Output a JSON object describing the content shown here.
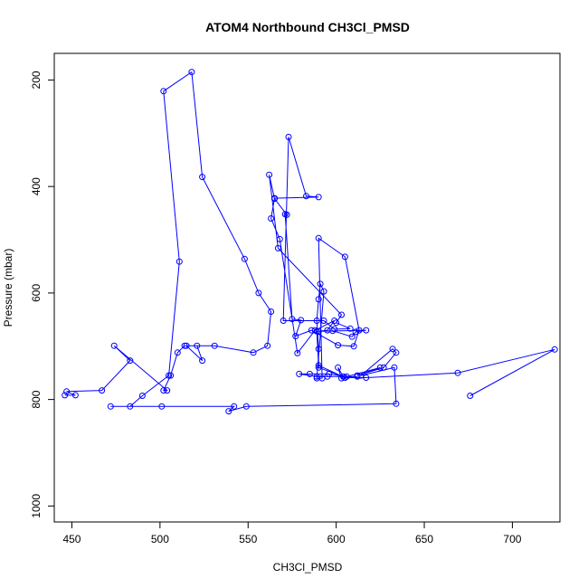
{
  "chart_data": {
    "type": "line",
    "title": "ATOM4 Northbound CH3Cl_PMSD",
    "xlabel": "CH3Cl_PMSD",
    "ylabel": "Pressure (mbar)",
    "xlim": [
      440,
      727
    ],
    "ylim": [
      1030,
      150
    ],
    "y_reversed": true,
    "x_ticks": [
      450,
      500,
      550,
      600,
      650,
      700
    ],
    "y_ticks": [
      200,
      400,
      600,
      800,
      1000
    ],
    "grid": false,
    "legend": "none",
    "series": [
      {
        "color": "#0000ff",
        "marker": "open-circle",
        "points": [
          [
            446,
            792
          ],
          [
            452,
            792
          ],
          [
            447,
            785
          ],
          [
            467,
            783
          ],
          [
            483,
            727
          ],
          [
            474,
            699
          ],
          [
            504,
            783
          ],
          [
            502,
            783
          ],
          [
            506,
            755
          ],
          [
            510,
            712
          ],
          [
            514,
            699
          ],
          [
            521,
            699
          ],
          [
            524,
            727
          ],
          [
            515,
            699
          ],
          [
            531,
            699
          ],
          [
            553,
            712
          ],
          [
            561,
            699
          ],
          [
            563,
            635
          ],
          [
            556,
            600
          ],
          [
            548,
            536
          ],
          [
            524,
            382
          ],
          [
            518,
            185
          ],
          [
            502,
            221
          ],
          [
            511,
            541
          ],
          [
            505,
            755
          ],
          [
            490,
            793
          ],
          [
            483,
            813
          ],
          [
            472,
            813
          ],
          [
            501,
            813
          ],
          [
            542,
            813
          ],
          [
            539,
            822
          ],
          [
            549,
            813
          ],
          [
            634,
            808
          ],
          [
            633,
            740
          ],
          [
            614,
            755
          ],
          [
            632,
            705
          ],
          [
            634,
            712
          ],
          [
            627,
            740
          ],
          [
            612,
            755
          ],
          [
            625,
            740
          ],
          [
            606,
            757
          ],
          [
            596,
            752
          ],
          [
            585,
            752
          ],
          [
            579,
            752
          ],
          [
            589,
            757
          ],
          [
            595,
            757
          ],
          [
            612,
            757
          ],
          [
            603,
            760
          ],
          [
            601,
            740
          ],
          [
            604,
            757
          ],
          [
            590,
            740
          ],
          [
            590,
            705
          ],
          [
            589,
            652
          ],
          [
            590,
            612
          ],
          [
            591,
            583
          ],
          [
            593,
            597
          ],
          [
            589,
            760
          ],
          [
            592,
            760
          ],
          [
            590,
            497
          ],
          [
            605,
            532
          ],
          [
            613,
            670
          ],
          [
            610,
            700
          ],
          [
            601,
            698
          ],
          [
            586,
            670
          ],
          [
            577,
            681
          ],
          [
            580,
            651
          ],
          [
            575,
            649
          ],
          [
            571,
            452
          ],
          [
            572,
            453
          ],
          [
            565,
            423
          ],
          [
            562,
            378
          ],
          [
            567,
            516
          ],
          [
            603,
            641
          ],
          [
            600,
            656
          ],
          [
            608,
            667
          ],
          [
            599,
            668
          ],
          [
            593,
            652
          ],
          [
            570,
            652
          ],
          [
            573,
            307
          ],
          [
            583,
            418
          ],
          [
            590,
            420
          ],
          [
            565,
            422
          ],
          [
            563,
            460
          ],
          [
            568,
            499
          ],
          [
            578,
            713
          ],
          [
            588,
            670
          ],
          [
            599,
            652
          ],
          [
            595,
            670
          ],
          [
            590,
            672
          ],
          [
            617,
            670
          ],
          [
            611,
            673
          ],
          [
            609,
            682
          ],
          [
            598,
            671
          ],
          [
            589,
            672
          ],
          [
            590,
            736
          ],
          [
            605,
            759
          ],
          [
            617,
            759
          ],
          [
            669,
            750
          ],
          [
            724,
            706
          ],
          [
            676,
            793
          ]
        ]
      }
    ]
  }
}
